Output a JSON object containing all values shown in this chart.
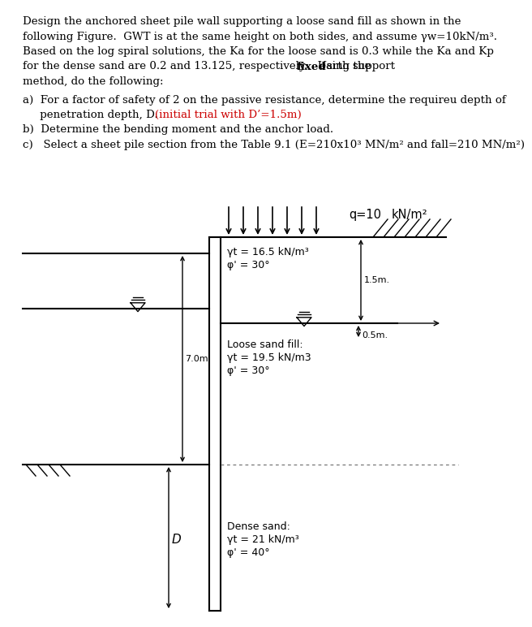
{
  "bg_color": "#ffffff",
  "text_color": "#000000",
  "red_color": "#cc0000",
  "text_top_lines": [
    "Design the anchored sheet pile wall supporting a loose sand fill as shown in the",
    "following Figure.  GWT is at the same height on both sides, and assume γw=10kN/m³.",
    "Based on the log spiral solutions, the Ka for the loose sand is 0.3 while the Ka and Kp",
    "for the dense sand are 0.2 and 13.125, respectively.   Using the"
  ],
  "text_line4_bold": "fixed",
  "text_line4_end": " earth support",
  "text_line5": "method, do the following:",
  "item_a1": "a)  For a factor of safety of 2 on the passive resistance, determine the requireu depth of",
  "item_a2_plain": "     penetration depth, D. ",
  "item_a2_red": "(initial trial with D’=1.5m)",
  "item_b": "b)  Determine the bending moment and the anchor load.",
  "item_c": "c)   Select a sheet pile section from the Table 9.1 (E=210x10³ MN/m² and fall=210 MN/m²)",
  "q_label": "q=10",
  "q_units": "kN/m²",
  "dim_15": "1.5m.",
  "dim_05": "0.5m.",
  "dim_7": "7.0m.",
  "label_D": "D",
  "upper_fill_l1": "γt = 16.5 kN/m³",
  "upper_fill_l2": "φ' = 30°",
  "loose_l0": "Loose sand fill:",
  "loose_l1": "γt = 19.5 kN/m3",
  "loose_l2": "φ' = 30°",
  "dense_l0": "Dense sand:",
  "dense_l1": "γt = 21 kN/m³",
  "dense_l2": "φ' = 40°"
}
